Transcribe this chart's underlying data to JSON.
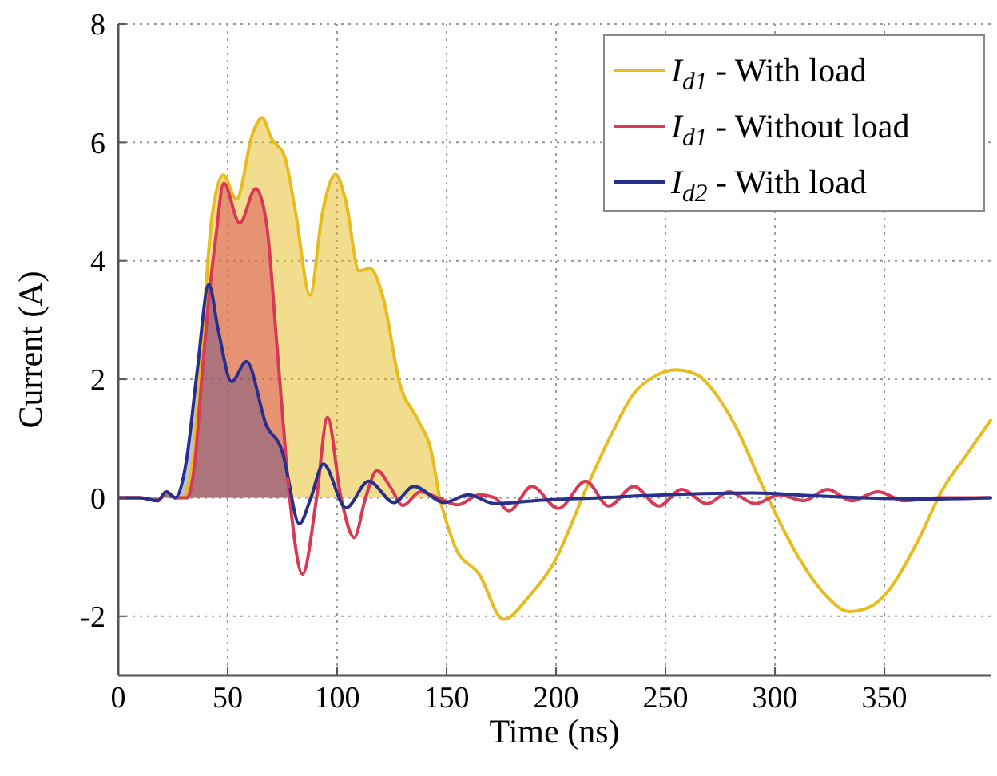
{
  "chart_data": {
    "type": "area",
    "xlabel": "Time (ns)",
    "ylabel": "Current (A)",
    "xlim": [
      0,
      398.5
    ],
    "ylim": [
      -3,
      8
    ],
    "xticks": [
      0,
      50,
      100,
      150,
      200,
      250,
      300,
      350
    ],
    "yticks": [
      -2,
      0,
      2,
      4,
      6,
      8
    ],
    "grid": true,
    "legend": "top right",
    "series": [
      {
        "name": "I$_{d1}$ - With load",
        "color": "#e6bc1e",
        "x": [
          0,
          10,
          18,
          22,
          26,
          29,
          34,
          38,
          43,
          48,
          54,
          61.5,
          65.7,
          70,
          76,
          81,
          87.6,
          93.2,
          99.3,
          104,
          110,
          115,
          121,
          128.5,
          137,
          143,
          146.7
        ],
        "values": [
          0,
          0,
          -0.05,
          0.1,
          0,
          0,
          0.6,
          2.5,
          4.8,
          5.45,
          5.04,
          6.16,
          6.42,
          6.07,
          5.76,
          4.82,
          3.42,
          4.8,
          5.46,
          5.0,
          3.83,
          3.87,
          3.38,
          1.94,
          1.31,
          0.78,
          0
        ]
      },
      {
        "name": "I$_{d1}$ - Without load",
        "color": "#d83a55",
        "x": [
          0,
          10,
          18,
          22,
          26,
          31.6,
          35,
          38.4,
          41.5,
          44.5,
          48.2,
          55.5,
          62.8,
          67.7,
          72.5,
          77.4
        ],
        "values": [
          0,
          0,
          -0.05,
          0.1,
          0,
          0,
          0.6,
          2.12,
          3.4,
          4.37,
          5.31,
          4.64,
          5.22,
          4.64,
          2.57,
          0.32
        ]
      },
      {
        "name": "I$_{d2}$ - With load",
        "color": "#2a2f8c",
        "x": [
          0,
          10,
          18,
          22,
          26,
          31,
          36,
          41.4,
          45.7,
          51.8,
          58.6,
          67.7,
          75,
          78.6
        ],
        "values": [
          0,
          0,
          -0.05,
          0.1,
          0,
          0.59,
          2.12,
          3.6,
          2.83,
          1.96,
          2.3,
          1.22,
          0.77,
          0.14
        ]
      },
      {
        "type": "line",
        "color": "#e6bc1e",
        "x": [
          146.7,
          154,
          165,
          176,
          188,
          199,
          213.6,
          225,
          235.5,
          245,
          254.9,
          264.7,
          273,
          281.8,
          295,
          311,
          322,
          334,
          343,
          352,
          365,
          376.6,
          388,
          398.5
        ],
        "values": [
          0,
          -0.84,
          -1.3,
          -2.05,
          -1.65,
          -1.1,
          0.14,
          1.05,
          1.76,
          2.05,
          2.16,
          2.07,
          1.75,
          1.22,
          0.14,
          -1.02,
          -1.6,
          -1.92,
          -1.85,
          -1.56,
          -0.75,
          0.14,
          0.75,
          1.31
        ]
      },
      {
        "type": "line",
        "color": "#d83a55",
        "x": [
          77.4,
          84.2,
          90.5,
          95.6,
          101.5,
          107.8,
          113,
          118.2,
          124,
          130,
          138,
          146,
          155,
          165,
          172,
          178.5,
          189,
          201,
          213.6,
          224,
          235.5,
          247,
          257.4,
          269,
          279,
          291,
          302,
          313,
          324,
          335,
          347,
          359,
          375,
          398.5
        ],
        "values": [
          0.32,
          -1.29,
          -0.03,
          1.36,
          0.05,
          -0.67,
          0,
          0.46,
          0.2,
          -0.13,
          0.1,
          0,
          -0.12,
          0.05,
          0,
          -0.22,
          0.19,
          -0.18,
          0.28,
          -0.14,
          0.19,
          -0.14,
          0.14,
          -0.1,
          0.1,
          -0.1,
          0.05,
          -0.05,
          0.14,
          -0.05,
          0.1,
          -0.05,
          0,
          0
        ]
      },
      {
        "type": "line",
        "color": "#2a2f8c",
        "x": [
          78.6,
          82.7,
          88,
          93.7,
          104,
          114.4,
          126,
          135,
          149,
          160,
          172,
          190,
          220,
          250,
          290,
          320,
          340,
          370,
          398.5
        ],
        "values": [
          0.14,
          -0.44,
          0,
          0.57,
          -0.17,
          0.28,
          -0.08,
          0.19,
          -0.08,
          0.05,
          -0.1,
          -0.05,
          0,
          0.05,
          0.08,
          0.03,
          0,
          -0.02,
          0
        ]
      }
    ]
  }
}
